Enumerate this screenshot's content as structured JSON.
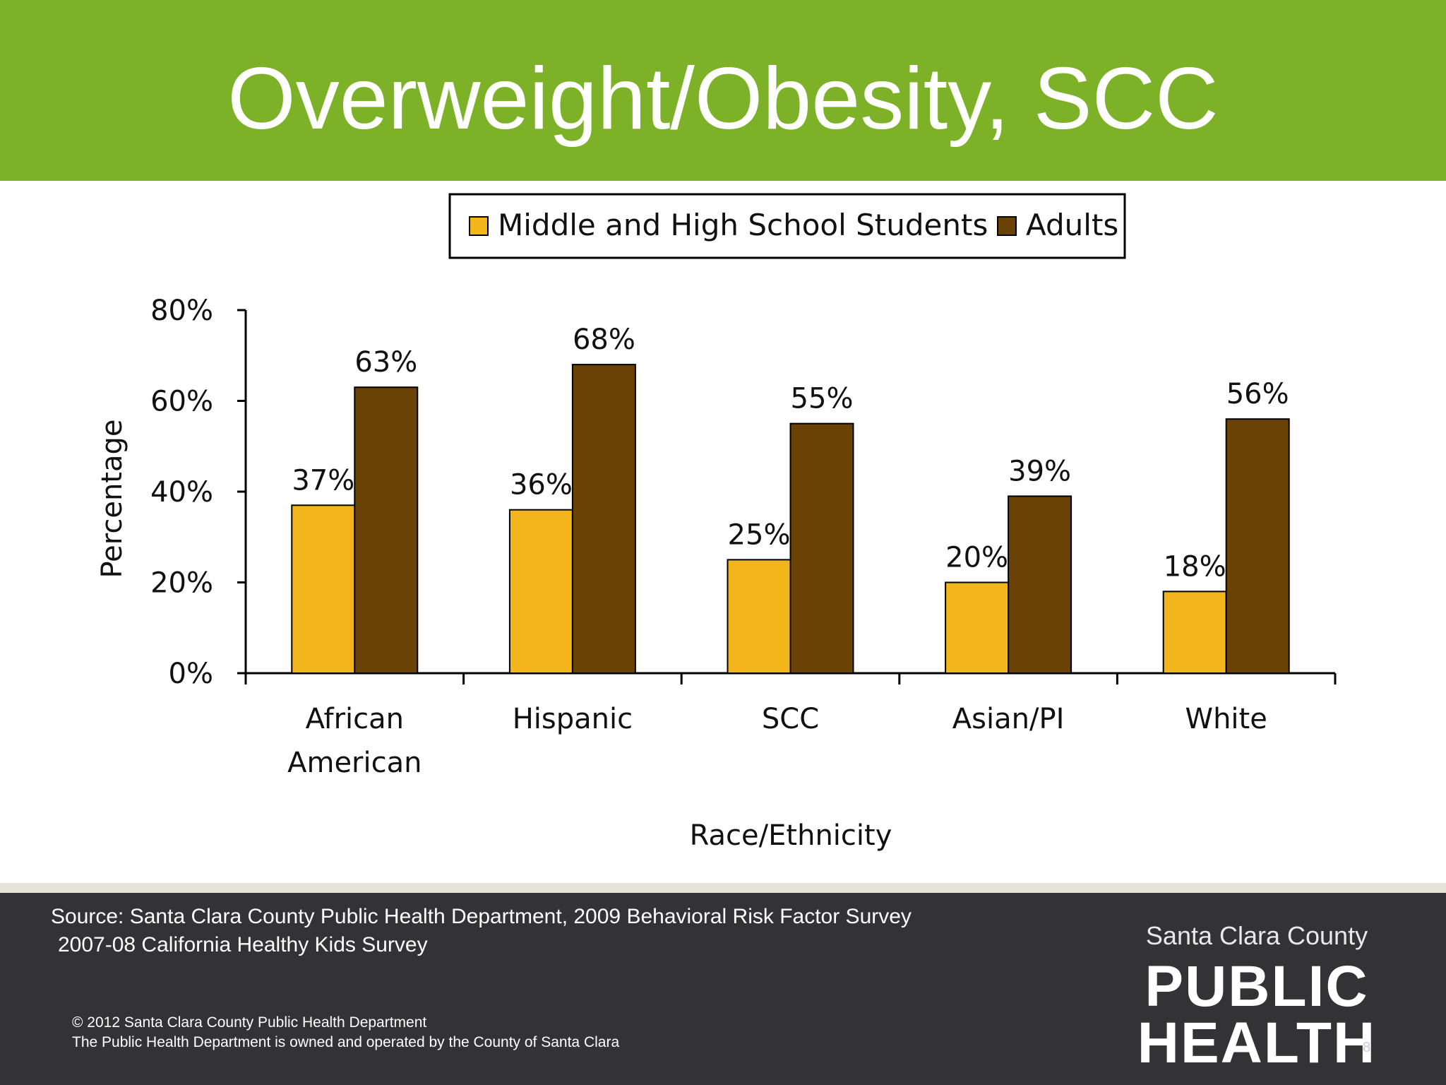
{
  "slide": {
    "title": "Overweight/Obesity, SCC",
    "page_number": "8"
  },
  "footer": {
    "source_line1": "Source: Santa Clara County Public Health Department, 2009 Behavioral Risk Factor Survey",
    "source_line2": "2007-08 California Healthy Kids Survey",
    "copyright_line1": "© 2012 Santa Clara County Public Health Department",
    "copyright_line2": "The Public Health Department is owned and operated by the County of Santa Clara"
  },
  "logo": {
    "county": "Santa Clara County",
    "line1": "PUBLIC",
    "line2": "HEALTH",
    "accent_color": "#7db128"
  },
  "colors": {
    "header": "#7db128",
    "footer": "#333235",
    "students": "#f2b51c",
    "adults": "#6b4206"
  },
  "chart_data": {
    "type": "bar",
    "categories": [
      [
        "African",
        "American"
      ],
      [
        "Hispanic"
      ],
      [
        "SCC"
      ],
      [
        "Asian/PI"
      ],
      [
        "White"
      ]
    ],
    "series": [
      {
        "name": "Middle and High School Students",
        "values": [
          37,
          36,
          25,
          20,
          18
        ],
        "labels": [
          "37%",
          "36%",
          "25%",
          "20%",
          "18%"
        ],
        "color": "#f2b51c"
      },
      {
        "name": "Adults",
        "values": [
          63,
          68,
          55,
          39,
          56
        ],
        "labels": [
          "63%",
          "68%",
          "55%",
          "39%",
          "56%"
        ],
        "color": "#6b4206"
      }
    ],
    "xlabel": "Race/Ethnicity",
    "ylabel": "Percentage",
    "ylim": [
      0,
      80
    ],
    "yticks": [
      0,
      20,
      40,
      60,
      80
    ],
    "ytick_labels": [
      "0%",
      "20%",
      "40%",
      "60%",
      "80%"
    ],
    "legend_position": "top",
    "grid": false
  }
}
